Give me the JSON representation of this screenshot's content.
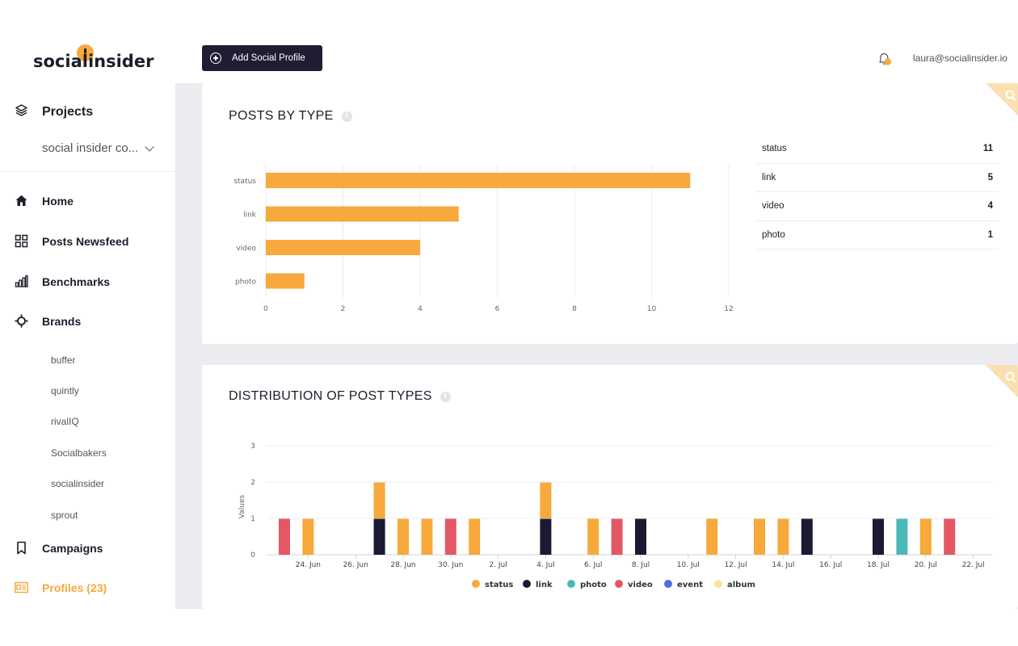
{
  "brand": {
    "logo_text": "socialinsider"
  },
  "sidebar": {
    "projects_label": "Projects",
    "project_selected": "social insider co...",
    "nav": [
      {
        "label": "Home",
        "icon": "home-icon"
      },
      {
        "label": "Posts Newsfeed",
        "icon": "grid-icon"
      },
      {
        "label": "Benchmarks",
        "icon": "bar-chart-icon"
      },
      {
        "label": "Brands",
        "icon": "crosshair-icon"
      }
    ],
    "brands": [
      "buffer",
      "quintly",
      "rivalIQ",
      "Socialbakers",
      "socialinsider",
      "sprout"
    ],
    "campaigns_label": "Campaigns",
    "profiles_label": "Profiles (23)"
  },
  "topbar": {
    "add_button_label": "Add Social Profile",
    "user_email": "laura@socialinsider.io"
  },
  "colors": {
    "accent": "#f7a93b",
    "dark": "#1e1d33",
    "status": "#f7a93b",
    "link": "#1a1a33",
    "photo": "#4cb9b9",
    "video": "#e45764",
    "event": "#4f6fe0",
    "album": "#fbe29a"
  },
  "posts_by_type": {
    "title": "POSTS BY TYPE",
    "table": [
      {
        "type": "status",
        "count": "11"
      },
      {
        "type": "link",
        "count": "5"
      },
      {
        "type": "video",
        "count": "4"
      },
      {
        "type": "photo",
        "count": "1"
      }
    ]
  },
  "distribution": {
    "title": "DISTRIBUTION OF POST TYPES"
  },
  "chart_data": [
    {
      "type": "bar",
      "orientation": "horizontal",
      "categories": [
        "status",
        "link",
        "video",
        "photo"
      ],
      "values": [
        11,
        5,
        4,
        1
      ],
      "xlim": [
        0,
        12
      ],
      "xticks": [
        "0",
        "2",
        "4",
        "6",
        "8",
        "10",
        "12"
      ],
      "grid": true
    },
    {
      "type": "bar",
      "stacked": true,
      "ylabel": "Values",
      "ylim": [
        0,
        3
      ],
      "yticks": [
        "0",
        "1",
        "2",
        "3"
      ],
      "x_start": "23. Jun",
      "xticks": [
        "24. Jun",
        "26. Jun",
        "28. Jun",
        "30. Jun",
        "2. Jul",
        "4. Jul",
        "6. Jul",
        "8. Jul",
        "10. Jul",
        "12. Jul",
        "14. Jul",
        "16. Jul",
        "18. Jul",
        "20. Jul",
        "22. Jul"
      ],
      "legend": [
        "status",
        "link",
        "photo",
        "video",
        "event",
        "album"
      ],
      "legend_position": "bottom",
      "bars": [
        {
          "day": 0,
          "stack": [
            {
              "type": "video",
              "value": 1
            }
          ]
        },
        {
          "day": 1,
          "stack": [
            {
              "type": "status",
              "value": 1
            }
          ]
        },
        {
          "day": 4,
          "stack": [
            {
              "type": "link",
              "value": 1
            },
            {
              "type": "status",
              "value": 1
            }
          ]
        },
        {
          "day": 5,
          "stack": [
            {
              "type": "status",
              "value": 1
            }
          ]
        },
        {
          "day": 6,
          "stack": [
            {
              "type": "status",
              "value": 1
            }
          ]
        },
        {
          "day": 7,
          "stack": [
            {
              "type": "video",
              "value": 1
            }
          ]
        },
        {
          "day": 8,
          "stack": [
            {
              "type": "status",
              "value": 1
            }
          ]
        },
        {
          "day": 11,
          "stack": [
            {
              "type": "link",
              "value": 1
            },
            {
              "type": "status",
              "value": 1
            }
          ]
        },
        {
          "day": 13,
          "stack": [
            {
              "type": "status",
              "value": 1
            }
          ]
        },
        {
          "day": 14,
          "stack": [
            {
              "type": "video",
              "value": 1
            }
          ]
        },
        {
          "day": 15,
          "stack": [
            {
              "type": "link",
              "value": 1
            }
          ]
        },
        {
          "day": 18,
          "stack": [
            {
              "type": "status",
              "value": 1
            }
          ]
        },
        {
          "day": 20,
          "stack": [
            {
              "type": "status",
              "value": 1
            }
          ]
        },
        {
          "day": 21,
          "stack": [
            {
              "type": "status",
              "value": 1
            }
          ]
        },
        {
          "day": 22,
          "stack": [
            {
              "type": "link",
              "value": 1
            }
          ]
        },
        {
          "day": 25,
          "stack": [
            {
              "type": "link",
              "value": 1
            }
          ]
        },
        {
          "day": 26,
          "stack": [
            {
              "type": "photo",
              "value": 1
            }
          ]
        },
        {
          "day": 27,
          "stack": [
            {
              "type": "status",
              "value": 1
            }
          ]
        },
        {
          "day": 28,
          "stack": [
            {
              "type": "video",
              "value": 1
            }
          ]
        }
      ]
    }
  ]
}
